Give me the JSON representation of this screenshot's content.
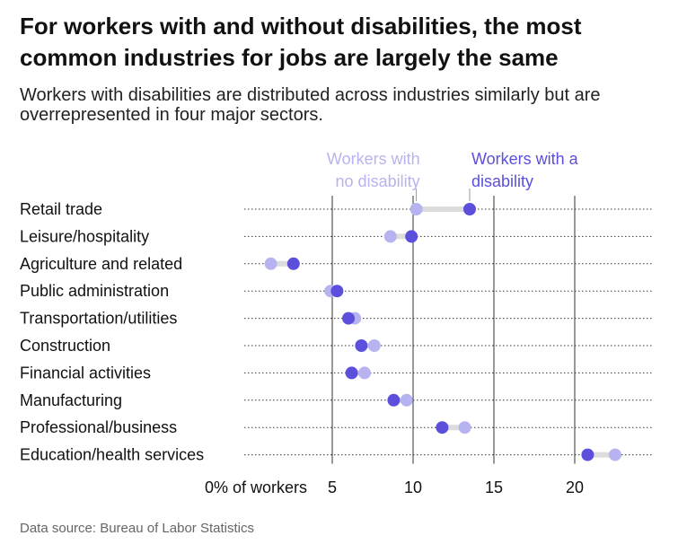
{
  "title": "For workers with and without disabilities, the most common industries for jobs are largely the same",
  "subtitle": "Workers with disabilities are distributed across industries similarly but are overrepresented in four major sectors.",
  "source": "Data source: Bureau of Labor Statistics",
  "colors": {
    "no_disability": "#b7b3f0",
    "disability": "#5b4fdb",
    "connector": "#dcdcdc",
    "grid": "#333333"
  },
  "chart_data": {
    "type": "dot",
    "xlim": [
      0,
      24
    ],
    "xticks": [
      0,
      5,
      10,
      15,
      20
    ],
    "xtick_labels": [
      "0% of workers",
      "5",
      "10",
      "15",
      "20"
    ],
    "categories": [
      "Retail trade",
      "Leisure/hospitality",
      "Agriculture and related",
      "Public administration",
      "Transportation/utilities",
      "Construction",
      "Financial activities",
      "Manufacturing",
      "Professional/business",
      "Education/health services"
    ],
    "series": [
      {
        "name": "Workers with no disability",
        "legend_lines": [
          "Workers with",
          "no disability"
        ],
        "color": "#b7b3f0",
        "values": [
          10.2,
          8.6,
          1.2,
          4.9,
          6.4,
          7.6,
          7.0,
          9.6,
          13.2,
          22.5
        ]
      },
      {
        "name": "Workers with a disability",
        "legend_lines": [
          "Workers with a",
          "disability"
        ],
        "color": "#5b4fdb",
        "values": [
          13.5,
          9.9,
          2.6,
          5.3,
          6.0,
          6.8,
          6.2,
          8.8,
          11.8,
          20.8
        ]
      }
    ],
    "grid": "dotted-horizontal-and-solid-vertical"
  }
}
